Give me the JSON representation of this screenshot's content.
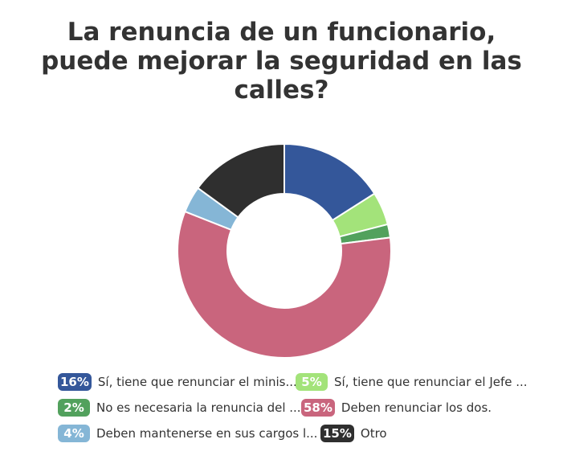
{
  "title_lines": [
    "La renuncia de un funcionario,",
    "puede mejorar la seguridad en las",
    "calles?"
  ],
  "chart_data": {
    "type": "pie",
    "donut": true,
    "title": "La renuncia de un funcionario, puede mejorar la seguridad en las calles?",
    "legend_position": "bottom",
    "slices": [
      {
        "label": "Sí, tiene que renunciar el minis...",
        "value": 16,
        "display": "16%",
        "color": "#34579a"
      },
      {
        "label": "Sí, tiene que renunciar el Jefe ...",
        "value": 5,
        "display": "5%",
        "color": "#a3e37a"
      },
      {
        "label": "No es necesaria la renuncia del ...",
        "value": 2,
        "display": "2%",
        "color": "#52a15d"
      },
      {
        "label": "Deben renunciar los dos.",
        "value": 58,
        "display": "58%",
        "color": "#c9657d"
      },
      {
        "label": "Deben mantenerse en sus cargos l...",
        "value": 4,
        "display": "4%",
        "color": "#85b6d6"
      },
      {
        "label": "Otro",
        "value": 15,
        "display": "15%",
        "color": "#2f2f2f"
      }
    ]
  }
}
